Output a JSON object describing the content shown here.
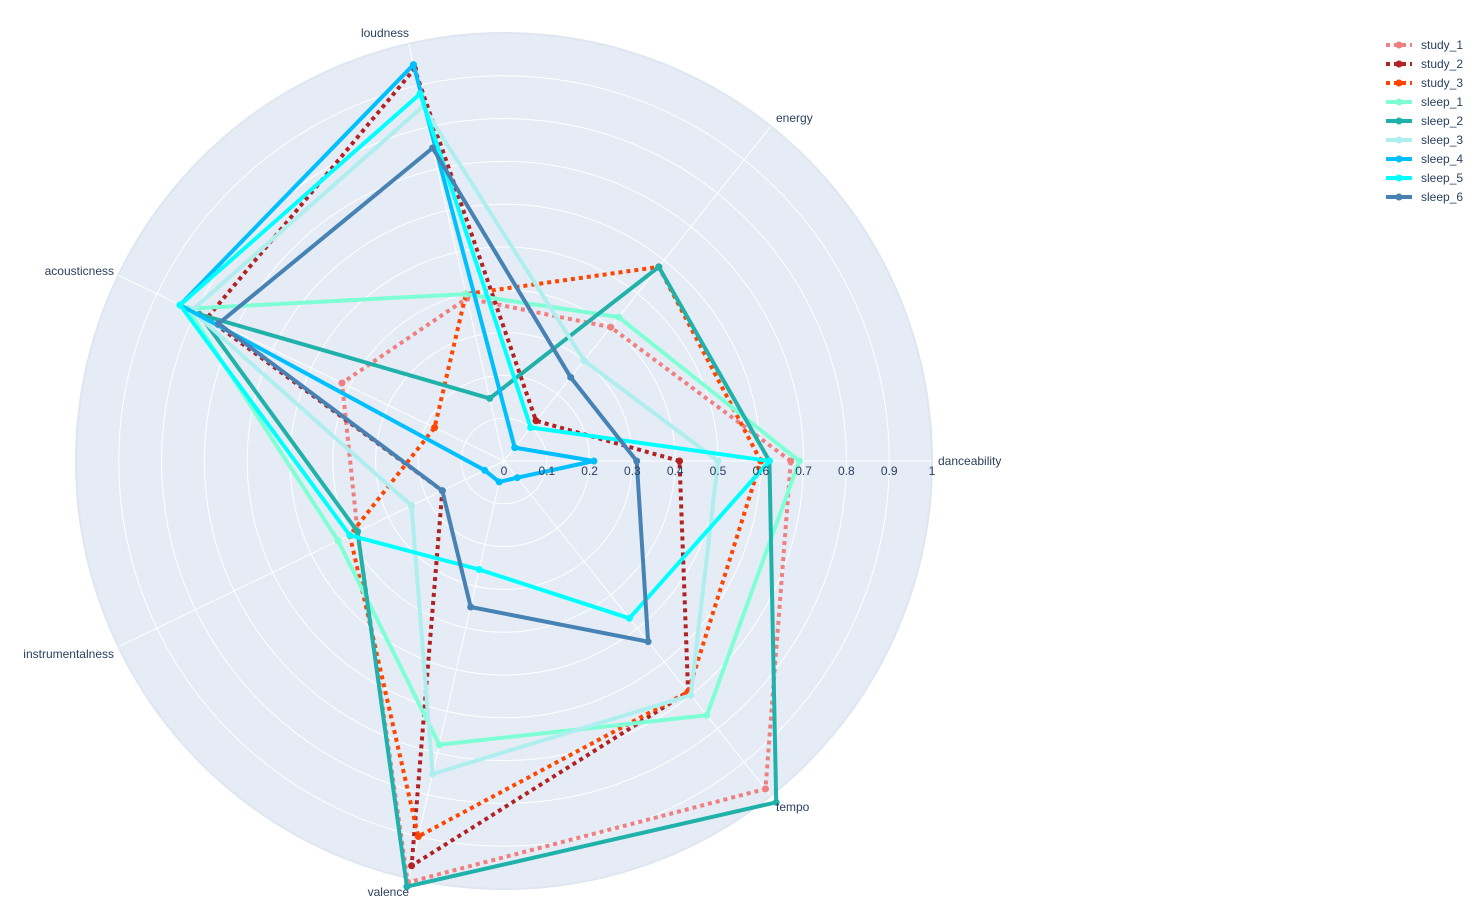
{
  "chart_data": {
    "type": "radar",
    "axes": [
      "danceability",
      "energy",
      "loudness",
      "acousticness",
      "instrumentalness",
      "valence",
      "tempo"
    ],
    "radial_range": [
      0,
      1
    ],
    "radial_ticks": [
      "0",
      "0.1",
      "0.2",
      "0.3",
      "0.4",
      "0.5",
      "0.6",
      "0.7",
      "0.8",
      "0.9",
      "1"
    ],
    "grid": true,
    "legend_position": "top-right",
    "series": [
      {
        "name": "study_1",
        "color": "#f08080",
        "dash": "dot",
        "values": [
          0.67,
          0.4,
          0.39,
          0.42,
          0.38,
          1.01,
          0.98
        ]
      },
      {
        "name": "study_2",
        "color": "#b22222",
        "dash": "dot",
        "values": [
          0.41,
          0.12,
          0.94,
          0.77,
          0.16,
          0.97,
          0.69
        ]
      },
      {
        "name": "study_3",
        "color": "#ff4500",
        "dash": "dot",
        "values": [
          0.6,
          0.58,
          0.4,
          0.18,
          0.4,
          0.9,
          0.69
        ]
      },
      {
        "name": "sleep_1",
        "color": "#7fffd4",
        "dash": "solid",
        "values": [
          0.69,
          0.43,
          0.4,
          0.82,
          0.43,
          0.68,
          0.76
        ]
      },
      {
        "name": "sleep_2",
        "color": "#20b2aa",
        "dash": "solid",
        "values": [
          0.62,
          0.58,
          0.15,
          0.79,
          0.38,
          1.02,
          1.02
        ]
      },
      {
        "name": "sleep_3",
        "color": "#afeeee",
        "dash": "solid",
        "values": [
          0.5,
          0.3,
          0.85,
          0.81,
          0.24,
          0.75,
          0.7
        ]
      },
      {
        "name": "sleep_4",
        "color": "#00bfff",
        "dash": "solid",
        "values": [
          0.21,
          0.04,
          0.95,
          0.84,
          0.05,
          0.05,
          0.05
        ]
      },
      {
        "name": "sleep_5",
        "color": "#00ffff",
        "dash": "solid",
        "values": [
          0.62,
          0.1,
          0.88,
          0.84,
          0.4,
          0.26,
          0.47
        ]
      },
      {
        "name": "sleep_6",
        "color": "#4682b4",
        "dash": "solid",
        "values": [
          0.31,
          0.25,
          0.75,
          0.74,
          0.16,
          0.35,
          0.54
        ]
      }
    ]
  }
}
